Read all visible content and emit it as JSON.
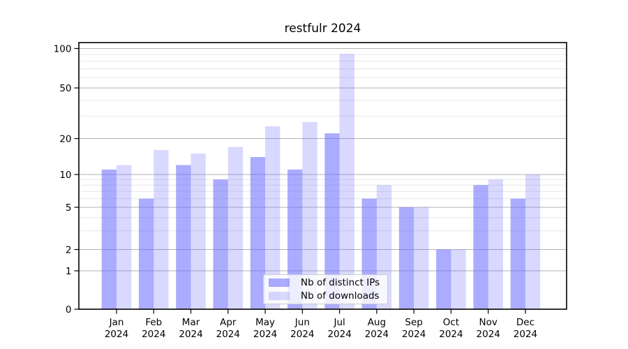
{
  "chart_data": {
    "type": "bar",
    "title": "restfulr 2024",
    "categories": [
      "Jan",
      "Feb",
      "Mar",
      "Apr",
      "May",
      "Jun",
      "Jul",
      "Aug",
      "Sep",
      "Oct",
      "Nov",
      "Dec"
    ],
    "x_year_label": "2024",
    "series": [
      {
        "name": "Nb of distinct IPs",
        "color": "rgba(102,102,255,0.55)",
        "values": [
          11,
          6,
          12,
          9,
          14,
          11,
          22,
          6,
          5,
          2,
          8,
          6
        ]
      },
      {
        "name": "Nb of downloads",
        "color": "rgba(102,102,255,0.25)",
        "values": [
          12,
          16,
          15,
          17,
          25,
          27,
          91,
          8,
          5,
          2,
          9,
          10
        ]
      }
    ],
    "yscale": "log-like",
    "ylim": [
      0,
      112
    ],
    "y_major_ticks": [
      0,
      1,
      2,
      5,
      10,
      20,
      50,
      100
    ],
    "y_minor_gridlines": [
      3,
      4,
      6,
      7,
      8,
      9,
      30,
      40,
      60,
      70,
      80,
      90
    ],
    "grid": "horizontal",
    "legend_position": "inside-bottom-center",
    "colors": {
      "bar_base": "#6666ff",
      "major_grid": "#b2b2b2",
      "minor_grid": "#e6e6e6",
      "axis": "#000000",
      "legend_border": "#cccccc"
    }
  }
}
